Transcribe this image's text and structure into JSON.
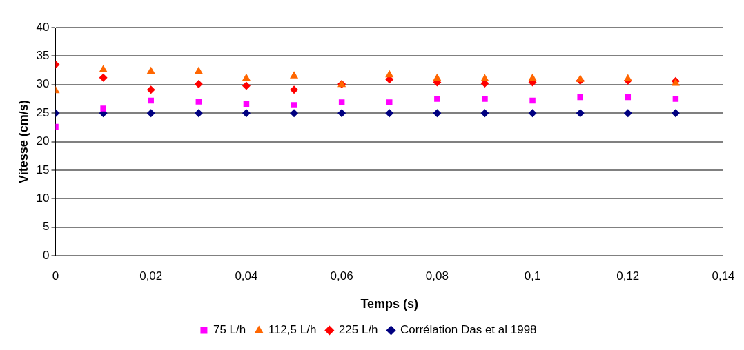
{
  "chart_data": {
    "type": "scatter",
    "xlabel": "Temps (s)",
    "ylabel": "Vitesse (cm/s)",
    "x": [
      0,
      0.01,
      0.02,
      0.03,
      0.04,
      0.05,
      0.06,
      0.07,
      0.08,
      0.09,
      0.1,
      0.11,
      0.12,
      0.13
    ],
    "series": [
      {
        "name": "75 L/h",
        "color": "#ff00ff",
        "marker": "square",
        "values": [
          22.6,
          25.8,
          27.2,
          27.0,
          26.6,
          26.4,
          26.9,
          26.9,
          27.5,
          27.5,
          27.2,
          27.8,
          27.8,
          27.5
        ]
      },
      {
        "name": "112,5 L/h",
        "color": "#ff6600",
        "marker": "triangle",
        "values": [
          28.9,
          32.6,
          32.3,
          32.3,
          31.1,
          31.5,
          30.0,
          31.7,
          31.1,
          31.0,
          31.1,
          30.9,
          31.0,
          30.2
        ]
      },
      {
        "name": "225 L/h",
        "color": "#ff0000",
        "marker": "diamond",
        "values": [
          33.5,
          31.2,
          29.1,
          30.1,
          29.8,
          29.1,
          30.1,
          30.9,
          30.4,
          30.2,
          30.4,
          30.7,
          30.7,
          30.6
        ]
      },
      {
        "name": "Corrélation Das et al 1998",
        "color": "#000080",
        "marker": "diamond",
        "values": [
          25,
          25,
          25,
          25,
          25,
          25,
          25,
          25,
          25,
          25,
          25,
          25,
          25,
          25
        ]
      }
    ],
    "xlim": [
      0,
      0.14
    ],
    "xticks": [
      0,
      {
        "value": 0.02,
        "label": "0,02"
      },
      {
        "value": 0.04,
        "label": "0,04"
      },
      {
        "value": 0.06,
        "label": "0,06"
      },
      {
        "value": 0.08,
        "label": "0,08"
      },
      {
        "value": 0.1,
        "label": "0,1"
      },
      {
        "value": 0.12,
        "label": "0,12"
      },
      {
        "value": 0.14,
        "label": "0,14"
      }
    ],
    "ylim": [
      0,
      40
    ],
    "yticks": [
      0,
      5,
      10,
      15,
      20,
      25,
      30,
      35,
      40
    ],
    "grid": "y",
    "legend": "bottom"
  }
}
